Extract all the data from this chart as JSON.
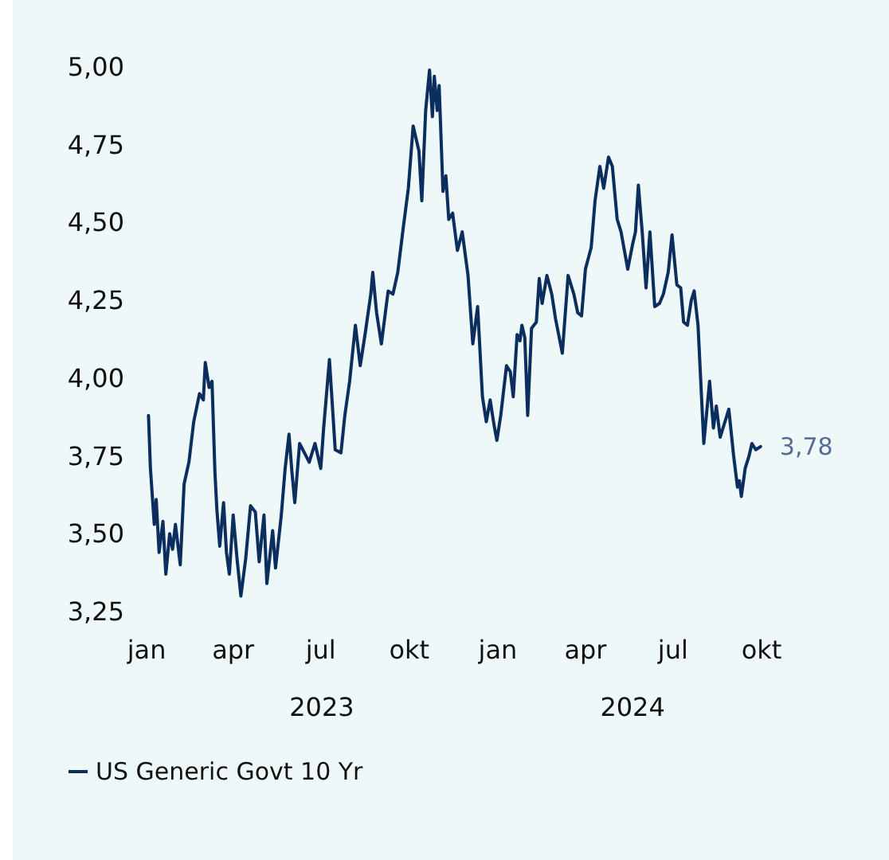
{
  "chart_data": {
    "type": "line",
    "x": [
      "2023-01-03",
      "2023-01-05",
      "2023-01-09",
      "2023-01-11",
      "2023-01-14",
      "2023-01-18",
      "2023-01-21",
      "2023-01-25",
      "2023-01-28",
      "2023-01-31",
      "2023-02-05",
      "2023-02-09",
      "2023-02-14",
      "2023-02-19",
      "2023-02-25",
      "2023-03-01",
      "2023-03-03",
      "2023-03-07",
      "2023-03-10",
      "2023-03-13",
      "2023-03-15",
      "2023-03-18",
      "2023-03-22",
      "2023-03-25",
      "2023-03-28",
      "2023-04-01",
      "2023-04-05",
      "2023-04-09",
      "2023-04-14",
      "2023-04-19",
      "2023-04-24",
      "2023-04-28",
      "2023-05-03",
      "2023-05-06",
      "2023-05-12",
      "2023-05-15",
      "2023-05-21",
      "2023-05-25",
      "2023-05-29",
      "2023-06-01",
      "2023-06-04",
      "2023-06-09",
      "2023-06-14",
      "2023-06-19",
      "2023-06-25",
      "2023-07-01",
      "2023-07-04",
      "2023-07-10",
      "2023-07-16",
      "2023-07-22",
      "2023-07-26",
      "2023-07-31",
      "2023-08-06",
      "2023-08-11",
      "2023-08-16",
      "2023-08-22",
      "2023-08-24",
      "2023-08-28",
      "2023-09-02",
      "2023-09-09",
      "2023-09-14",
      "2023-09-19",
      "2023-09-25",
      "2023-09-30",
      "2023-10-05",
      "2023-10-11",
      "2023-10-14",
      "2023-10-18",
      "2023-10-22",
      "2023-10-25",
      "2023-10-27",
      "2023-10-30",
      "2023-11-01",
      "2023-11-05",
      "2023-11-08",
      "2023-11-11",
      "2023-11-15",
      "2023-11-20",
      "2023-11-25",
      "2023-12-01",
      "2023-12-06",
      "2023-12-11",
      "2023-12-16",
      "2023-12-20",
      "2023-12-24",
      "2023-12-28",
      "2023-12-31",
      "2024-01-04",
      "2024-01-10",
      "2024-01-14",
      "2024-01-17",
      "2024-01-21",
      "2024-01-24",
      "2024-01-26",
      "2024-01-29",
      "2024-02-01",
      "2024-02-05",
      "2024-02-10",
      "2024-02-13",
      "2024-02-16",
      "2024-02-21",
      "2024-02-26",
      "2024-03-01",
      "2024-03-08",
      "2024-03-14",
      "2024-03-20",
      "2024-03-24",
      "2024-03-28",
      "2024-04-01",
      "2024-04-07",
      "2024-04-11",
      "2024-04-16",
      "2024-04-20",
      "2024-04-25",
      "2024-04-29",
      "2024-05-04",
      "2024-05-08",
      "2024-05-15",
      "2024-05-20",
      "2024-05-23",
      "2024-05-26",
      "2024-05-30",
      "2024-06-03",
      "2024-06-07",
      "2024-06-12",
      "2024-06-17",
      "2024-06-21",
      "2024-06-26",
      "2024-06-30",
      "2024-07-05",
      "2024-07-09",
      "2024-07-12",
      "2024-07-16",
      "2024-07-20",
      "2024-07-23",
      "2024-07-27",
      "2024-08-02",
      "2024-08-08",
      "2024-08-12",
      "2024-08-15",
      "2024-08-19",
      "2024-08-23",
      "2024-08-28",
      "2024-09-02",
      "2024-09-06",
      "2024-09-08",
      "2024-09-10",
      "2024-09-14",
      "2024-09-18",
      "2024-09-21",
      "2024-09-25",
      "2024-09-30"
    ],
    "series": [
      {
        "name": "US Generic Govt 10 Yr",
        "color": "#0b2e5e",
        "values": [
          3.88,
          3.71,
          3.53,
          3.61,
          3.44,
          3.54,
          3.37,
          3.5,
          3.45,
          3.53,
          3.4,
          3.66,
          3.73,
          3.86,
          3.95,
          3.93,
          4.05,
          3.97,
          3.99,
          3.7,
          3.58,
          3.46,
          3.6,
          3.44,
          3.37,
          3.56,
          3.42,
          3.3,
          3.42,
          3.59,
          3.57,
          3.41,
          3.56,
          3.34,
          3.51,
          3.39,
          3.56,
          3.71,
          3.82,
          3.7,
          3.6,
          3.79,
          3.76,
          3.73,
          3.79,
          3.71,
          3.84,
          4.06,
          3.77,
          3.76,
          3.88,
          3.99,
          4.17,
          4.04,
          4.14,
          4.27,
          4.34,
          4.21,
          4.11,
          4.28,
          4.27,
          4.34,
          4.49,
          4.61,
          4.81,
          4.73,
          4.57,
          4.86,
          4.99,
          4.84,
          4.97,
          4.86,
          4.94,
          4.6,
          4.65,
          4.51,
          4.53,
          4.41,
          4.47,
          4.33,
          4.11,
          4.23,
          3.94,
          3.86,
          3.93,
          3.85,
          3.8,
          3.88,
          4.04,
          4.02,
          3.94,
          4.14,
          4.12,
          4.17,
          4.13,
          3.88,
          4.16,
          4.18,
          4.32,
          4.24,
          4.33,
          4.27,
          4.19,
          4.08,
          4.33,
          4.27,
          4.21,
          4.2,
          4.35,
          4.42,
          4.57,
          4.68,
          4.61,
          4.71,
          4.68,
          4.51,
          4.47,
          4.35,
          4.43,
          4.47,
          4.62,
          4.47,
          4.29,
          4.47,
          4.23,
          4.24,
          4.27,
          4.34,
          4.46,
          4.3,
          4.29,
          4.18,
          4.17,
          4.25,
          4.28,
          4.17,
          3.79,
          3.99,
          3.84,
          3.91,
          3.81,
          3.85,
          3.9,
          3.75,
          3.65,
          3.67,
          3.62,
          3.71,
          3.75,
          3.79,
          3.77,
          3.78
        ]
      }
    ],
    "xlim": [
      "2023-01-01",
      "2024-10-01"
    ],
    "x2lim": [
      "2023-07-02",
      "2024-05-20"
    ],
    "xticks": [
      {
        "value": "2023-01-01",
        "label": "jan"
      },
      {
        "value": "2023-04-01",
        "label": "apr"
      },
      {
        "value": "2023-07-01",
        "label": "jul"
      },
      {
        "value": "2023-10-01",
        "label": "okt"
      },
      {
        "value": "2024-01-01",
        "label": "jan"
      },
      {
        "value": "2024-04-01",
        "label": "apr"
      },
      {
        "value": "2024-07-01",
        "label": "jul"
      },
      {
        "value": "2024-10-01",
        "label": "okt"
      }
    ],
    "x2ticks": [
      {
        "value": "2023-07-02",
        "label": "2023"
      },
      {
        "value": "2024-05-20",
        "label": "2024"
      }
    ],
    "ylim": [
      3.25,
      5.0
    ],
    "yticks": [
      {
        "value": 3.25,
        "label": "3,25"
      },
      {
        "value": 3.5,
        "label": "3,50"
      },
      {
        "value": 3.75,
        "label": "3,75"
      },
      {
        "value": 4.0,
        "label": "4,00"
      },
      {
        "value": 4.25,
        "label": "4,25"
      },
      {
        "value": 4.5,
        "label": "4,50"
      },
      {
        "value": 4.75,
        "label": "4,75"
      },
      {
        "value": 5.0,
        "label": "5,00"
      }
    ],
    "annotations": [
      {
        "text": "3,78",
        "x": "2024-09-30",
        "y": 3.78
      }
    ],
    "grid": false,
    "legend": "bottom left",
    "marker": "none",
    "line_style": "solid"
  }
}
